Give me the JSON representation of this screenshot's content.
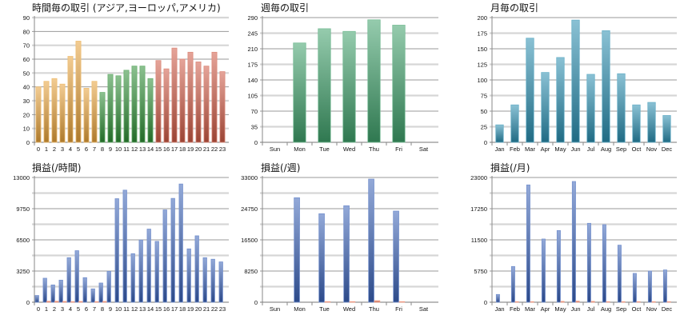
{
  "chart_data": [
    {
      "type": "bar",
      "title": "時間毎の取引 (アジア,ヨーロッパ,アメリカ)",
      "categories": [
        "0",
        "1",
        "2",
        "3",
        "4",
        "5",
        "6",
        "7",
        "8",
        "9",
        "10",
        "11",
        "12",
        "13",
        "14",
        "15",
        "16",
        "17",
        "18",
        "19",
        "20",
        "21",
        "22",
        "23"
      ],
      "ylim": [
        0,
        90
      ],
      "yticks": [
        "0",
        "10",
        "20",
        "30",
        "40",
        "50",
        "60",
        "70",
        "80",
        "90"
      ],
      "grid": true,
      "series": [
        {
          "values": [
            40,
            44,
            46,
            42,
            62,
            73,
            39,
            44,
            36,
            49,
            48,
            52,
            55,
            55,
            46,
            59,
            53,
            68,
            60,
            65,
            58,
            55,
            65,
            51
          ]
        }
      ],
      "bar_colors": [
        "#e8a33a",
        "#e8a33a",
        "#e8a33a",
        "#e8a33a",
        "#e8a33a",
        "#e8a33a",
        "#e8a33a",
        "#e8a33a",
        "#2e8f35",
        "#2e8f35",
        "#2e8f35",
        "#2e8f35",
        "#2e8f35",
        "#2e8f35",
        "#2e8f35",
        "#cf5a45",
        "#cf5a45",
        "#cf5a45",
        "#cf5a45",
        "#cf5a45",
        "#cf5a45",
        "#cf5a45",
        "#cf5a45",
        "#cf5a45"
      ]
    },
    {
      "type": "bar",
      "title": "週毎の取引",
      "categories": [
        "Sun",
        "Mon",
        "Tue",
        "Wed",
        "Thu",
        "Fri",
        "Sat"
      ],
      "ylim": [
        0,
        280
      ],
      "yticks": [
        "0",
        "35",
        "70",
        "105",
        "140",
        "175",
        "210",
        "245",
        "290"
      ],
      "grid": true,
      "series": [
        {
          "values": [
            0,
            223,
            255,
            249,
            275,
            263,
            0
          ]
        }
      ],
      "color": "#3fa06a"
    },
    {
      "type": "bar",
      "title": "月毎の取引",
      "categories": [
        "Jan",
        "Feb",
        "Mar",
        "Apr",
        "May",
        "Jun",
        "Jul",
        "Aug",
        "Sep",
        "Oct",
        "Nov",
        "Dec"
      ],
      "ylim": [
        0,
        200
      ],
      "yticks": [
        "0",
        "25",
        "50",
        "75",
        "100",
        "125",
        "150",
        "175",
        "200"
      ],
      "grid": true,
      "series": [
        {
          "values": [
            28,
            60,
            167,
            112,
            136,
            196,
            109,
            179,
            110,
            60,
            64,
            43
          ]
        }
      ],
      "color": "#2b8fb0"
    },
    {
      "type": "bar",
      "title": "損益(/時間)",
      "categories": [
        "0",
        "1",
        "2",
        "3",
        "4",
        "5",
        "6",
        "7",
        "8",
        "9",
        "10",
        "11",
        "12",
        "13",
        "14",
        "15",
        "16",
        "17",
        "18",
        "19",
        "20",
        "21",
        "22",
        "23"
      ],
      "ylim": [
        0,
        13000
      ],
      "yticks": [
        "0",
        "",
        "3250",
        "",
        "6500",
        "",
        "9750",
        "",
        "13000"
      ],
      "grid": true,
      "series": [
        {
          "values": [
            700,
            2500,
            1800,
            2300,
            4640,
            5370,
            2560,
            1390,
            2000,
            3220,
            10790,
            11680,
            5060,
            6480,
            7620,
            6340,
            9620,
            10820,
            12320,
            5560,
            6920,
            4640,
            4480,
            4200
          ],
          "color": "#3a62b8"
        },
        {
          "values": [
            0,
            100,
            100,
            80,
            60,
            80,
            0,
            60,
            80,
            0,
            0,
            0,
            0,
            0,
            0,
            0,
            0,
            0,
            0,
            0,
            0,
            0,
            0,
            0
          ],
          "color": "#e8704f"
        }
      ]
    },
    {
      "type": "bar",
      "title": "損益(/週)",
      "categories": [
        "Sun",
        "Mon",
        "Tue",
        "Wed",
        "Thu",
        "Fri",
        "Sat"
      ],
      "ylim": [
        0,
        33000
      ],
      "yticks": [
        "0",
        "",
        "8250",
        "",
        "16500",
        "",
        "24750",
        "",
        "33000"
      ],
      "grid": true,
      "series": [
        {
          "values": [
            0,
            27640,
            23410,
            25520,
            32570,
            24110,
            0
          ],
          "color": "#3a62b8"
        },
        {
          "values": [
            0,
            0,
            150,
            150,
            400,
            150,
            0
          ],
          "color": "#e8704f"
        }
      ]
    },
    {
      "type": "bar",
      "title": "損益(/月)",
      "categories": [
        "Jan",
        "Feb",
        "Mar",
        "Apr",
        "May",
        "Jun",
        "Jul",
        "Aug",
        "Sep",
        "Oct",
        "Nov",
        "Dec"
      ],
      "ylim": [
        0,
        23000
      ],
      "yticks": [
        "0",
        "",
        "5750",
        "",
        "11500",
        "",
        "17250",
        "",
        "23000"
      ],
      "grid": true,
      "series": [
        {
          "values": [
            1430,
            6590,
            21630,
            11650,
            13220,
            22260,
            14550,
            14300,
            10520,
            5310,
            5750,
            5950
          ],
          "color": "#3a62b8"
        },
        {
          "values": [
            0,
            100,
            100,
            0,
            150,
            200,
            150,
            100,
            100,
            100,
            100,
            100
          ],
          "color": "#e8704f"
        }
      ]
    }
  ]
}
